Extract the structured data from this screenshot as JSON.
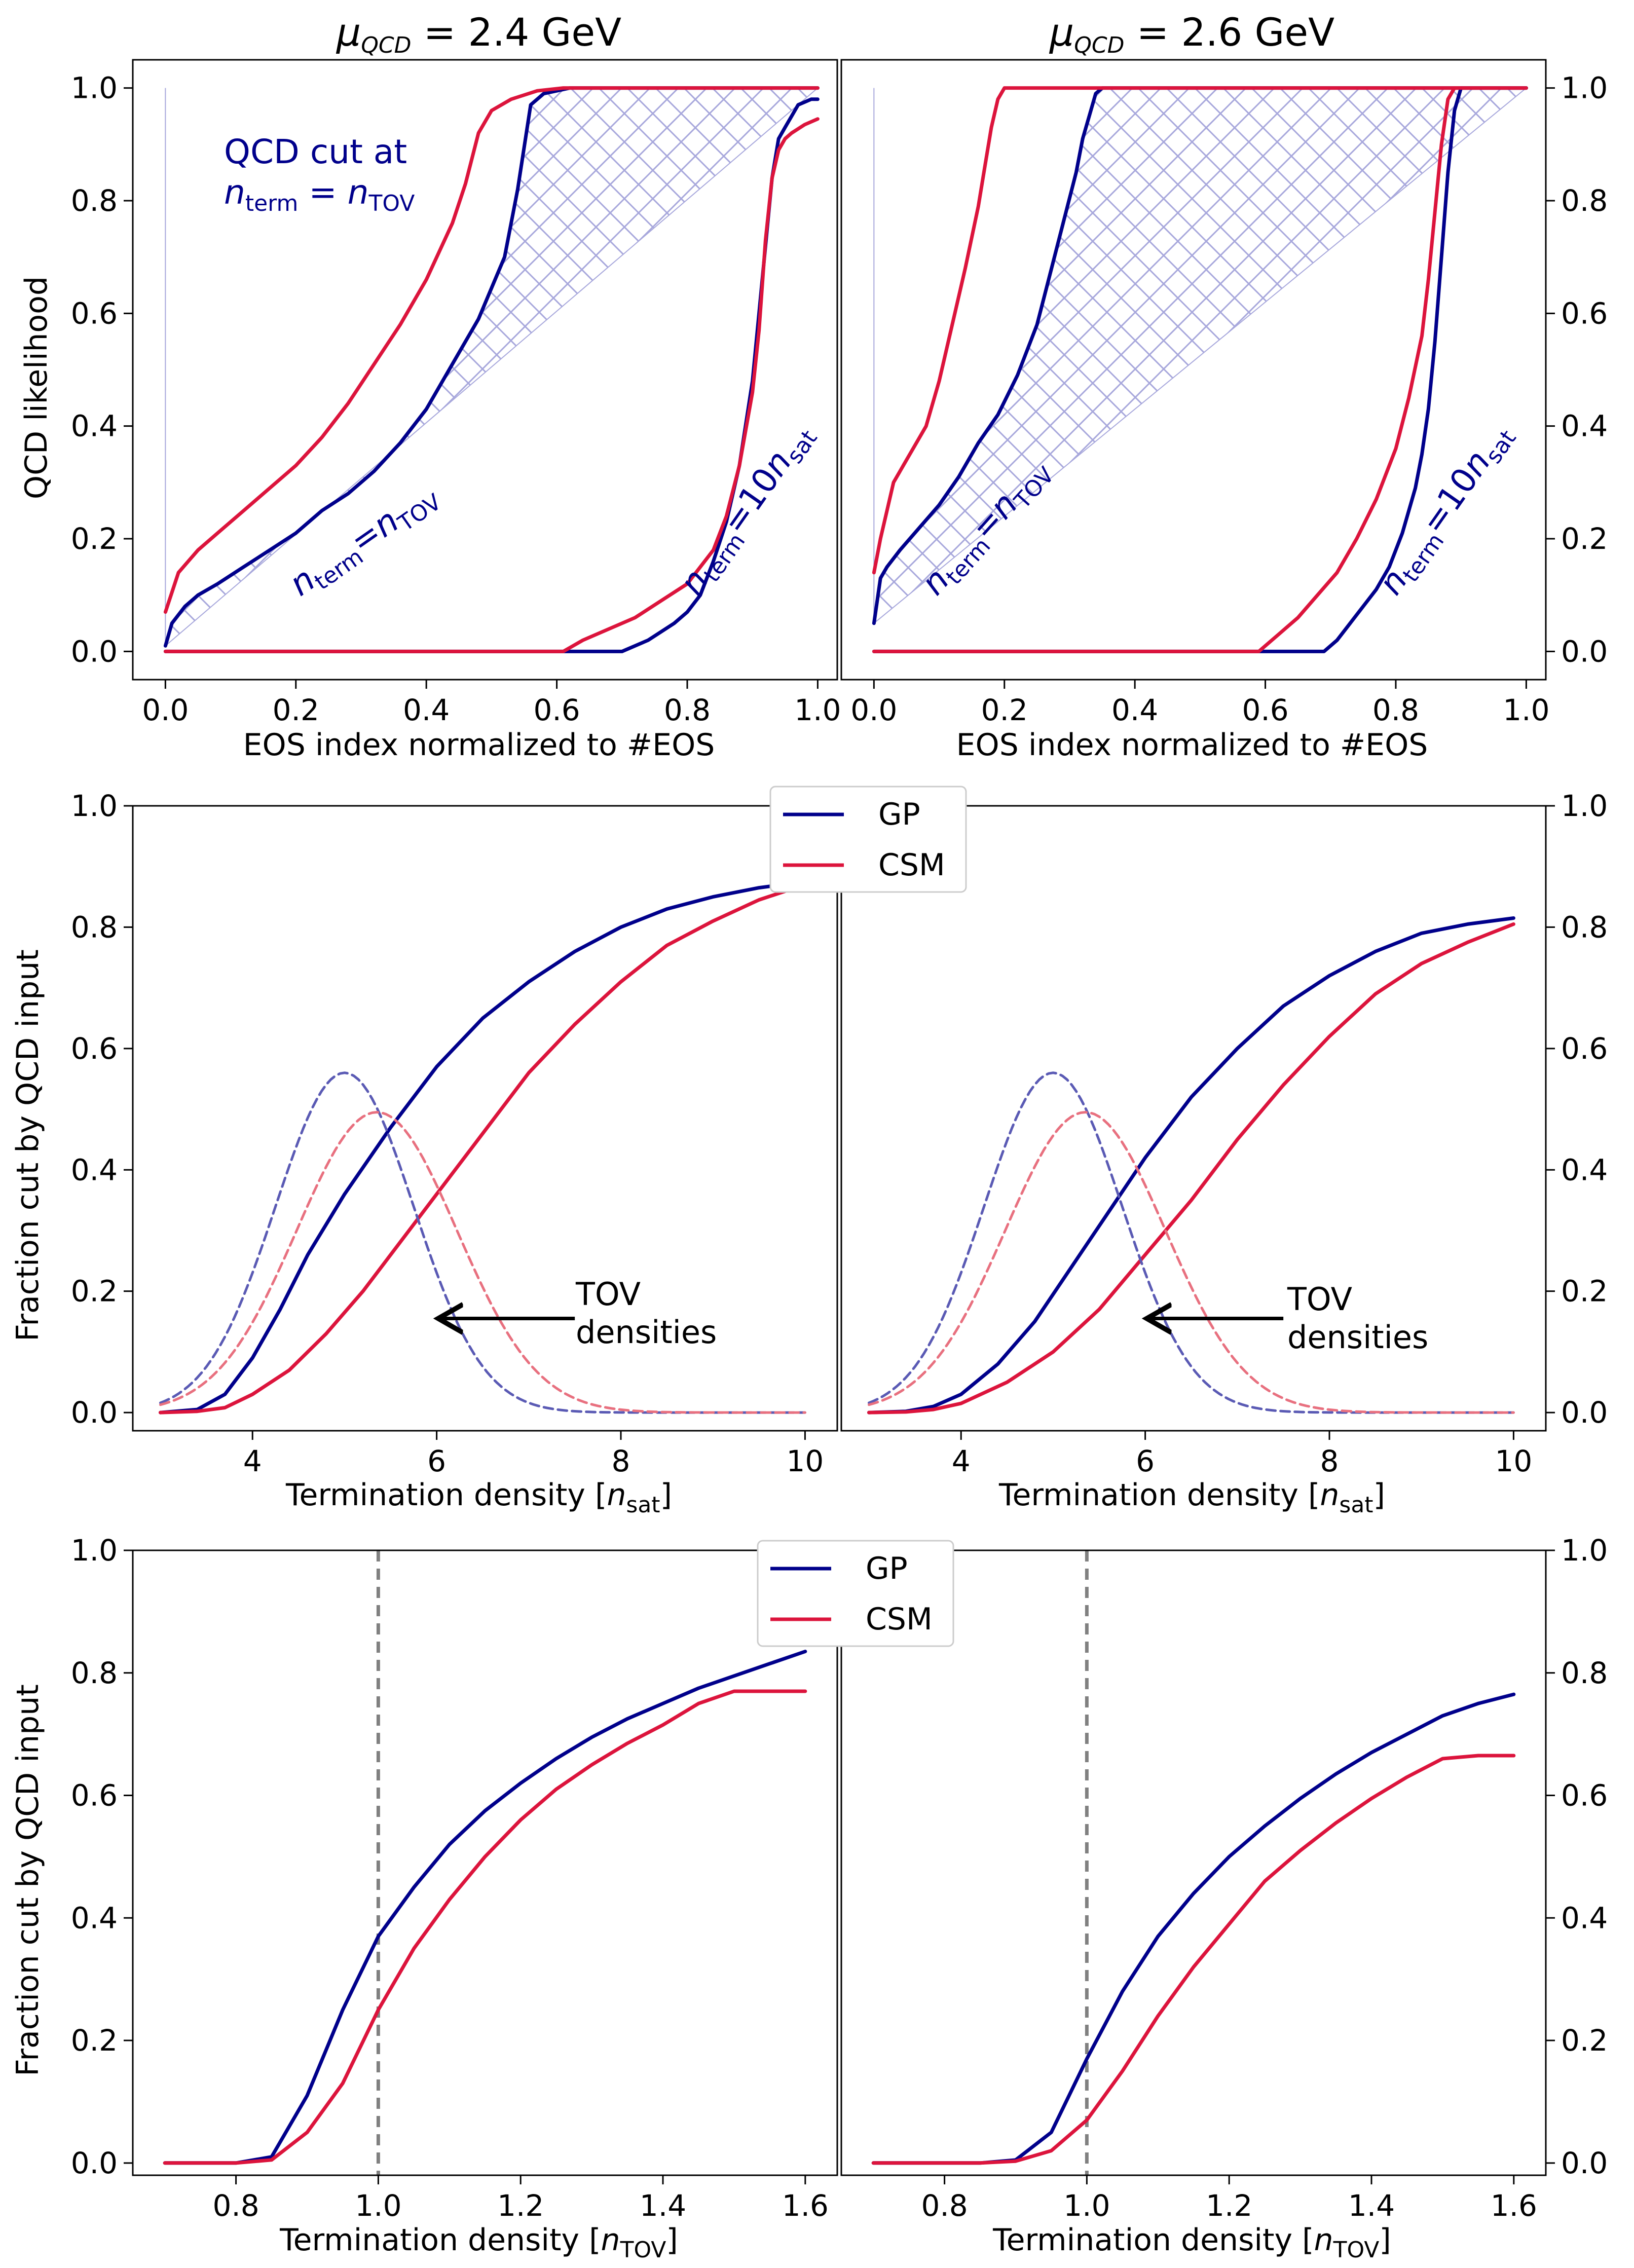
{
  "colors": {
    "gp": "#00008b",
    "csm": "#dc143c",
    "gp_dashed": "#5a5ab4",
    "csm_dashed": "#e8707f",
    "hatch": "#a8a8dc",
    "dashed_line": "#808080"
  },
  "titles": {
    "left": "μ_QCD = 2.4 GeV",
    "right": "μ_QCD = 2.6 GeV"
  },
  "legend": {
    "gp": "GP",
    "csm": "CSM"
  },
  "annotations": {
    "qcd_cut_line1": "QCD cut at",
    "qcd_cut_line2": "n_term = n_TOV",
    "nterm_ntov": "n_term = n_TOV",
    "nterm_10nsat": "n_term = 10n_sat",
    "tov_line1": "TOV",
    "tov_line2": "densities"
  },
  "chart_data": [
    {
      "id": "top_left",
      "type": "line",
      "title": "μ_QCD = 2.4 GeV",
      "xlabel": "EOS index normalized to #EOS",
      "ylabel": "QCD likelihood",
      "xlim": [
        -0.05,
        1.03
      ],
      "ylim": [
        -0.05,
        1.05
      ],
      "xticks": [
        "0.0",
        "0.2",
        "0.4",
        "0.6",
        "0.8",
        "1.0"
      ],
      "yticks": [
        "0.0",
        "0.2",
        "0.4",
        "0.6",
        "0.8",
        "1.0"
      ],
      "series": [
        {
          "name": "GP n_term=n_TOV",
          "color": "gp",
          "x": [
            0,
            0.01,
            0.03,
            0.05,
            0.08,
            0.12,
            0.16,
            0.2,
            0.24,
            0.28,
            0.32,
            0.36,
            0.4,
            0.44,
            0.48,
            0.52,
            0.54,
            0.56,
            0.58,
            0.6,
            0.62,
            0.64,
            0.67,
            1.0
          ],
          "y": [
            0.01,
            0.05,
            0.08,
            0.1,
            0.12,
            0.15,
            0.18,
            0.21,
            0.25,
            0.28,
            0.32,
            0.37,
            0.43,
            0.51,
            0.59,
            0.7,
            0.82,
            0.97,
            0.99,
            0.995,
            1.0,
            1.0,
            1.0,
            1.0
          ]
        },
        {
          "name": "CSM n_term=n_TOV",
          "color": "csm",
          "x": [
            0,
            0.02,
            0.05,
            0.08,
            0.12,
            0.16,
            0.2,
            0.24,
            0.28,
            0.32,
            0.36,
            0.4,
            0.44,
            0.46,
            0.48,
            0.5,
            0.53,
            0.57,
            0.61,
            0.65,
            1.0
          ],
          "y": [
            0.07,
            0.14,
            0.18,
            0.21,
            0.25,
            0.29,
            0.33,
            0.38,
            0.44,
            0.51,
            0.58,
            0.66,
            0.76,
            0.83,
            0.92,
            0.96,
            0.98,
            0.995,
            1.0,
            1.0,
            1.0
          ]
        },
        {
          "name": "GP n_term=10n_sat",
          "color": "gp",
          "x": [
            0,
            0.7,
            0.74,
            0.78,
            0.8,
            0.82,
            0.84,
            0.86,
            0.88,
            0.9,
            0.91,
            0.92,
            0.93,
            0.94,
            0.95,
            0.96,
            0.97,
            0.98,
            0.99,
            1.0
          ],
          "y": [
            0,
            0,
            0.02,
            0.05,
            0.07,
            0.1,
            0.16,
            0.23,
            0.33,
            0.48,
            0.6,
            0.72,
            0.84,
            0.91,
            0.93,
            0.95,
            0.97,
            0.975,
            0.98,
            0.98
          ]
        },
        {
          "name": "CSM n_term=10n_sat",
          "color": "csm",
          "x": [
            0,
            0.61,
            0.64,
            0.68,
            0.72,
            0.76,
            0.8,
            0.84,
            0.86,
            0.88,
            0.9,
            0.91,
            0.92,
            0.93,
            0.94,
            0.95,
            0.96,
            0.98,
            1.0
          ],
          "y": [
            0,
            0,
            0.02,
            0.04,
            0.06,
            0.09,
            0.12,
            0.18,
            0.24,
            0.33,
            0.46,
            0.57,
            0.73,
            0.84,
            0.89,
            0.91,
            0.92,
            0.935,
            0.945
          ]
        }
      ]
    },
    {
      "id": "top_right",
      "type": "line",
      "title": "μ_QCD = 2.6 GeV",
      "xlabel": "EOS index normalized to #EOS",
      "ylabel": "",
      "xlim": [
        -0.05,
        1.03
      ],
      "ylim": [
        -0.05,
        1.05
      ],
      "xticks": [
        "0.0",
        "0.2",
        "0.4",
        "0.6",
        "0.8",
        "1.0"
      ],
      "yticks": [
        "0.0",
        "0.2",
        "0.4",
        "0.6",
        "0.8",
        "1.0"
      ],
      "series": [
        {
          "name": "GP n_term=n_TOV",
          "color": "gp",
          "x": [
            0,
            0.01,
            0.02,
            0.04,
            0.07,
            0.1,
            0.13,
            0.16,
            0.19,
            0.22,
            0.25,
            0.27,
            0.29,
            0.31,
            0.32,
            0.33,
            0.34,
            0.35,
            0.36,
            1.0
          ],
          "y": [
            0.05,
            0.13,
            0.15,
            0.18,
            0.22,
            0.26,
            0.31,
            0.37,
            0.42,
            0.49,
            0.58,
            0.67,
            0.76,
            0.85,
            0.91,
            0.95,
            0.99,
            1.0,
            1.0,
            1.0
          ]
        },
        {
          "name": "CSM n_term=n_TOV",
          "color": "csm",
          "x": [
            0,
            0.01,
            0.02,
            0.03,
            0.05,
            0.08,
            0.1,
            0.12,
            0.14,
            0.16,
            0.17,
            0.18,
            0.19,
            0.2,
            1.0
          ],
          "y": [
            0.14,
            0.2,
            0.25,
            0.3,
            0.34,
            0.4,
            0.48,
            0.58,
            0.68,
            0.79,
            0.86,
            0.93,
            0.98,
            1.0,
            1.0
          ]
        },
        {
          "name": "GP n_term=10n_sat",
          "color": "gp",
          "x": [
            0,
            0.69,
            0.71,
            0.73,
            0.75,
            0.77,
            0.79,
            0.81,
            0.83,
            0.84,
            0.85,
            0.86,
            0.87,
            0.88,
            0.89,
            0.9,
            1.0
          ],
          "y": [
            0,
            0,
            0.02,
            0.05,
            0.08,
            0.11,
            0.15,
            0.21,
            0.29,
            0.35,
            0.43,
            0.55,
            0.7,
            0.85,
            0.96,
            1.0,
            1.0
          ]
        },
        {
          "name": "CSM n_term=10n_sat",
          "color": "csm",
          "x": [
            0,
            0.59,
            0.62,
            0.65,
            0.68,
            0.71,
            0.74,
            0.77,
            0.8,
            0.82,
            0.84,
            0.85,
            0.86,
            0.87,
            0.88,
            0.89,
            1.0
          ],
          "y": [
            0,
            0,
            0.03,
            0.06,
            0.1,
            0.14,
            0.2,
            0.27,
            0.36,
            0.45,
            0.56,
            0.66,
            0.78,
            0.9,
            0.98,
            1.0,
            1.0
          ]
        }
      ]
    },
    {
      "id": "mid_left",
      "type": "line",
      "xlabel": "Termination density [n_sat]",
      "ylabel": "Fraction cut by QCD input",
      "xlim": [
        2.7,
        10.35
      ],
      "ylim": [
        -0.03,
        1.0
      ],
      "xticks": [
        "4",
        "6",
        "8",
        "10"
      ],
      "yticks": [
        "0.0",
        "0.2",
        "0.4",
        "0.6",
        "0.8",
        "1.0"
      ],
      "series": [
        {
          "name": "GP",
          "color": "gp",
          "x": [
            3.0,
            3.4,
            3.7,
            4.0,
            4.3,
            4.6,
            5.0,
            5.5,
            6.0,
            6.5,
            7.0,
            7.5,
            8.0,
            8.5,
            9.0,
            9.5,
            10.0
          ],
          "y": [
            0.0,
            0.005,
            0.03,
            0.09,
            0.17,
            0.26,
            0.36,
            0.47,
            0.57,
            0.65,
            0.71,
            0.76,
            0.8,
            0.83,
            0.85,
            0.865,
            0.875
          ]
        },
        {
          "name": "CSM",
          "color": "csm",
          "x": [
            3.0,
            3.4,
            3.7,
            4.0,
            4.4,
            4.8,
            5.2,
            5.6,
            6.0,
            6.5,
            7.0,
            7.5,
            8.0,
            8.5,
            9.0,
            9.5,
            10.0
          ],
          "y": [
            0.0,
            0.002,
            0.008,
            0.03,
            0.07,
            0.13,
            0.2,
            0.28,
            0.36,
            0.46,
            0.56,
            0.64,
            0.71,
            0.77,
            0.81,
            0.845,
            0.87
          ]
        },
        {
          "name": "GP TOV densities",
          "color": "gp_dashed",
          "dashed": true,
          "mu": 5.0,
          "sigma": 0.75,
          "amp": 0.56,
          "x0": 3.0,
          "x1": 10.0
        },
        {
          "name": "CSM TOV densities",
          "color": "csm_dashed",
          "dashed": true,
          "mu": 5.35,
          "sigma": 0.87,
          "amp": 0.495,
          "x0": 3.0,
          "x1": 10.0
        }
      ],
      "arrow": {
        "from": [
          7.5,
          0.155
        ],
        "to": [
          6.0,
          0.155
        ]
      },
      "legend": "top-right"
    },
    {
      "id": "mid_right",
      "type": "line",
      "xlabel": "Termination density [n_sat]",
      "ylabel": "",
      "xlim": [
        2.7,
        10.35
      ],
      "ylim": [
        -0.03,
        1.0
      ],
      "xticks": [
        "4",
        "6",
        "8",
        "10"
      ],
      "yticks": [
        "0.0",
        "0.2",
        "0.4",
        "0.6",
        "0.8",
        "1.0"
      ],
      "series": [
        {
          "name": "GP",
          "color": "gp",
          "x": [
            3.0,
            3.4,
            3.7,
            4.0,
            4.4,
            4.8,
            5.2,
            5.6,
            6.0,
            6.5,
            7.0,
            7.5,
            8.0,
            8.5,
            9.0,
            9.5,
            10.0
          ],
          "y": [
            0.0,
            0.002,
            0.01,
            0.03,
            0.08,
            0.15,
            0.24,
            0.33,
            0.42,
            0.52,
            0.6,
            0.67,
            0.72,
            0.76,
            0.79,
            0.805,
            0.815
          ]
        },
        {
          "name": "CSM",
          "color": "csm",
          "x": [
            3.0,
            3.4,
            3.7,
            4.0,
            4.5,
            5.0,
            5.5,
            6.0,
            6.5,
            7.0,
            7.5,
            8.0,
            8.5,
            9.0,
            9.5,
            10.0
          ],
          "y": [
            0.0,
            0.001,
            0.005,
            0.015,
            0.05,
            0.1,
            0.17,
            0.26,
            0.35,
            0.45,
            0.54,
            0.62,
            0.69,
            0.74,
            0.775,
            0.805
          ]
        },
        {
          "name": "GP TOV densities",
          "color": "gp_dashed",
          "dashed": true,
          "mu": 5.0,
          "sigma": 0.75,
          "amp": 0.56,
          "x0": 3.0,
          "x1": 10.0
        },
        {
          "name": "CSM TOV densities",
          "color": "csm_dashed",
          "dashed": true,
          "mu": 5.35,
          "sigma": 0.87,
          "amp": 0.495,
          "x0": 3.0,
          "x1": 10.0
        }
      ],
      "arrow": {
        "from": [
          7.5,
          0.155
        ],
        "to": [
          6.0,
          0.155
        ]
      }
    },
    {
      "id": "bot_left",
      "type": "line",
      "xlabel": "Termination density [n_TOV]",
      "ylabel": "Fraction cut by QCD input",
      "xlim": [
        0.655,
        1.645
      ],
      "ylim": [
        -0.02,
        1.0
      ],
      "xticks": [
        "0.8",
        "1.0",
        "1.2",
        "1.4",
        "1.6"
      ],
      "yticks": [
        "0.0",
        "0.2",
        "0.4",
        "0.6",
        "0.8",
        "1.0"
      ],
      "vline": 1.0,
      "series": [
        {
          "name": "GP",
          "color": "gp",
          "x": [
            0.7,
            0.75,
            0.8,
            0.85,
            0.9,
            0.95,
            1.0,
            1.05,
            1.1,
            1.15,
            1.2,
            1.25,
            1.3,
            1.35,
            1.4,
            1.45,
            1.5,
            1.55,
            1.6
          ],
          "y": [
            0,
            0,
            0,
            0.01,
            0.11,
            0.25,
            0.37,
            0.45,
            0.52,
            0.575,
            0.62,
            0.66,
            0.695,
            0.725,
            0.75,
            0.775,
            0.795,
            0.815,
            0.835
          ]
        },
        {
          "name": "CSM",
          "color": "csm",
          "x": [
            0.7,
            0.75,
            0.8,
            0.85,
            0.9,
            0.95,
            1.0,
            1.05,
            1.1,
            1.15,
            1.2,
            1.25,
            1.3,
            1.35,
            1.4,
            1.45,
            1.5,
            1.55,
            1.6
          ],
          "y": [
            0,
            0,
            0,
            0.005,
            0.05,
            0.13,
            0.25,
            0.35,
            0.43,
            0.5,
            0.56,
            0.61,
            0.65,
            0.685,
            0.715,
            0.75,
            0.77,
            0.77,
            0.77
          ]
        }
      ],
      "legend": "top-right"
    },
    {
      "id": "bot_right",
      "type": "line",
      "xlabel": "Termination density [n_TOV]",
      "ylabel": "",
      "xlim": [
        0.655,
        1.645
      ],
      "ylim": [
        -0.02,
        1.0
      ],
      "xticks": [
        "0.8",
        "1.0",
        "1.2",
        "1.4",
        "1.6"
      ],
      "yticks": [
        "0.0",
        "0.2",
        "0.4",
        "0.6",
        "0.8",
        "1.0"
      ],
      "vline": 1.0,
      "series": [
        {
          "name": "GP",
          "color": "gp",
          "x": [
            0.7,
            0.75,
            0.8,
            0.85,
            0.9,
            0.95,
            1.0,
            1.05,
            1.1,
            1.15,
            1.2,
            1.25,
            1.3,
            1.35,
            1.4,
            1.45,
            1.5,
            1.55,
            1.6
          ],
          "y": [
            0,
            0,
            0,
            0,
            0.005,
            0.05,
            0.17,
            0.28,
            0.37,
            0.44,
            0.5,
            0.55,
            0.595,
            0.635,
            0.67,
            0.7,
            0.73,
            0.75,
            0.765
          ]
        },
        {
          "name": "CSM",
          "color": "csm",
          "x": [
            0.7,
            0.75,
            0.8,
            0.85,
            0.9,
            0.95,
            1.0,
            1.05,
            1.1,
            1.15,
            1.2,
            1.25,
            1.3,
            1.35,
            1.4,
            1.45,
            1.5,
            1.55,
            1.6
          ],
          "y": [
            0,
            0,
            0,
            0,
            0.003,
            0.02,
            0.07,
            0.15,
            0.24,
            0.32,
            0.39,
            0.46,
            0.51,
            0.555,
            0.595,
            0.63,
            0.66,
            0.665,
            0.665
          ]
        }
      ]
    }
  ]
}
